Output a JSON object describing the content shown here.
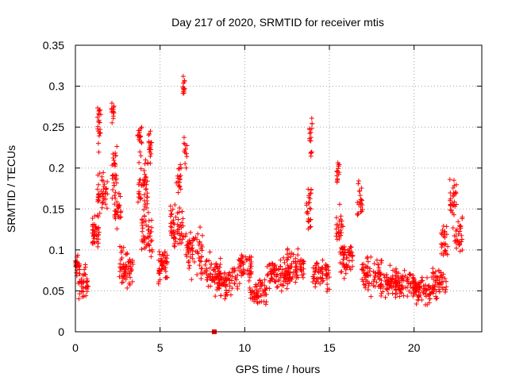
{
  "chart_data": {
    "type": "scatter",
    "title": "Day 217 of 2020, SRMTID for receiver mtis",
    "xlabel": "GPS time / hours",
    "ylabel": "SRMTID / TECUs",
    "xlim": [
      0,
      24
    ],
    "ylim": [
      0,
      0.35
    ],
    "xticks": [
      0,
      5,
      10,
      15,
      20
    ],
    "xtick_labels": [
      "0",
      "5",
      "10",
      "15",
      "20"
    ],
    "yticks": [
      0,
      0.05,
      0.1,
      0.15,
      0.2,
      0.25,
      0.3,
      0.35
    ],
    "ytick_labels": [
      "0",
      "0.05",
      "0.1",
      "0.15",
      "0.2",
      "0.25",
      "0.3",
      "0.35"
    ],
    "grid": true,
    "marker": "+",
    "color": "#ff0000",
    "series": [
      {
        "name": "SRMTID",
        "bursts": [
          {
            "x": 0.1,
            "y": 0.08,
            "spread": 0.015,
            "xspread": 0.15,
            "n": 30
          },
          {
            "x": 0.5,
            "y": 0.06,
            "spread": 0.018,
            "xspread": 0.3,
            "n": 40
          },
          {
            "x": 1.2,
            "y": 0.12,
            "spread": 0.02,
            "xspread": 0.2,
            "n": 40
          },
          {
            "x": 1.4,
            "y": 0.25,
            "spread": 0.03,
            "xspread": 0.1,
            "n": 22
          },
          {
            "x": 1.6,
            "y": 0.17,
            "spread": 0.025,
            "xspread": 0.3,
            "n": 45
          },
          {
            "x": 2.2,
            "y": 0.27,
            "spread": 0.02,
            "xspread": 0.1,
            "n": 14
          },
          {
            "x": 2.3,
            "y": 0.19,
            "spread": 0.03,
            "xspread": 0.15,
            "n": 28
          },
          {
            "x": 2.5,
            "y": 0.15,
            "spread": 0.02,
            "xspread": 0.2,
            "n": 30
          },
          {
            "x": 3.0,
            "y": 0.08,
            "spread": 0.025,
            "xspread": 0.4,
            "n": 60
          },
          {
            "x": 3.8,
            "y": 0.24,
            "spread": 0.015,
            "xspread": 0.15,
            "n": 15
          },
          {
            "x": 4.0,
            "y": 0.18,
            "spread": 0.035,
            "xspread": 0.3,
            "n": 50
          },
          {
            "x": 4.4,
            "y": 0.23,
            "spread": 0.02,
            "xspread": 0.1,
            "n": 18
          },
          {
            "x": 4.2,
            "y": 0.12,
            "spread": 0.025,
            "xspread": 0.35,
            "n": 45
          },
          {
            "x": 5.2,
            "y": 0.08,
            "spread": 0.018,
            "xspread": 0.3,
            "n": 50
          },
          {
            "x": 6.0,
            "y": 0.13,
            "spread": 0.025,
            "xspread": 0.4,
            "n": 60
          },
          {
            "x": 6.1,
            "y": 0.19,
            "spread": 0.02,
            "xspread": 0.15,
            "n": 18
          },
          {
            "x": 6.4,
            "y": 0.3,
            "spread": 0.012,
            "xspread": 0.06,
            "n": 12
          },
          {
            "x": 6.5,
            "y": 0.22,
            "spread": 0.02,
            "xspread": 0.1,
            "n": 12
          },
          {
            "x": 7.0,
            "y": 0.1,
            "spread": 0.025,
            "xspread": 0.5,
            "n": 60
          },
          {
            "x": 8.0,
            "y": 0.07,
            "spread": 0.02,
            "xspread": 0.6,
            "n": 70
          },
          {
            "x": 9.0,
            "y": 0.06,
            "spread": 0.018,
            "xspread": 0.6,
            "n": 70
          },
          {
            "x": 10.0,
            "y": 0.08,
            "spread": 0.025,
            "xspread": 0.4,
            "n": 50
          },
          {
            "x": 10.8,
            "y": 0.05,
            "spread": 0.015,
            "xspread": 0.5,
            "n": 60
          },
          {
            "x": 12.0,
            "y": 0.07,
            "spread": 0.02,
            "xspread": 0.7,
            "n": 90
          },
          {
            "x": 13.0,
            "y": 0.08,
            "spread": 0.02,
            "xspread": 0.5,
            "n": 60
          },
          {
            "x": 13.9,
            "y": 0.24,
            "spread": 0.025,
            "xspread": 0.08,
            "n": 16
          },
          {
            "x": 13.8,
            "y": 0.15,
            "spread": 0.03,
            "xspread": 0.15,
            "n": 25
          },
          {
            "x": 14.5,
            "y": 0.07,
            "spread": 0.02,
            "xspread": 0.5,
            "n": 60
          },
          {
            "x": 15.5,
            "y": 0.2,
            "spread": 0.02,
            "xspread": 0.1,
            "n": 14
          },
          {
            "x": 15.6,
            "y": 0.13,
            "spread": 0.025,
            "xspread": 0.2,
            "n": 25
          },
          {
            "x": 16.0,
            "y": 0.09,
            "spread": 0.02,
            "xspread": 0.4,
            "n": 55
          },
          {
            "x": 16.8,
            "y": 0.16,
            "spread": 0.025,
            "xspread": 0.15,
            "n": 22
          },
          {
            "x": 17.5,
            "y": 0.07,
            "spread": 0.02,
            "xspread": 0.6,
            "n": 70
          },
          {
            "x": 18.5,
            "y": 0.06,
            "spread": 0.018,
            "xspread": 0.6,
            "n": 70
          },
          {
            "x": 19.5,
            "y": 0.06,
            "spread": 0.018,
            "xspread": 0.6,
            "n": 70
          },
          {
            "x": 20.5,
            "y": 0.05,
            "spread": 0.015,
            "xspread": 0.6,
            "n": 70
          },
          {
            "x": 21.5,
            "y": 0.06,
            "spread": 0.02,
            "xspread": 0.4,
            "n": 50
          },
          {
            "x": 21.8,
            "y": 0.11,
            "spread": 0.02,
            "xspread": 0.2,
            "n": 25
          },
          {
            "x": 22.3,
            "y": 0.16,
            "spread": 0.025,
            "xspread": 0.2,
            "n": 28
          },
          {
            "x": 22.6,
            "y": 0.12,
            "spread": 0.02,
            "xspread": 0.25,
            "n": 30
          }
        ]
      }
    ],
    "gap_marker": {
      "x": 8.2,
      "y": 0
    }
  }
}
